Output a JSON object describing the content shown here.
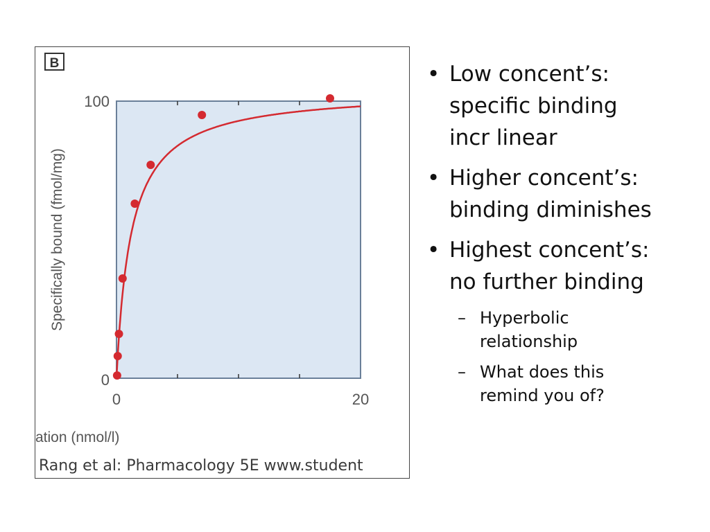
{
  "chart_data": {
    "type": "scatter",
    "panel_label": "B",
    "xlabel": "ation (nmol/l)",
    "ylabel": "Specifically bound (fmol/mg)",
    "xlim": [
      0,
      20
    ],
    "ylim": [
      0,
      100
    ],
    "x_ticks": [
      "0",
      "20"
    ],
    "y_ticks": [
      "0",
      "100"
    ],
    "series": [
      {
        "color": "#d42a30",
        "x": [
          0.05,
          0.1,
          0.2,
          0.5,
          1.5,
          2.8,
          7,
          17.5
        ],
        "y": [
          1,
          8,
          16,
          36,
          63,
          77,
          95,
          101
        ]
      }
    ],
    "curve": {
      "model": "hyperbolic",
      "bmax": 104,
      "kd": 1.2
    },
    "background": "#dce7f3",
    "caption": "Rang et al: Pharmacology 5E www.student"
  },
  "bullets": [
    {
      "lines": [
        "Low concent’s:",
        "specific binding",
        "incr linear"
      ]
    },
    {
      "lines": [
        "Higher concent’s:",
        "binding diminishes"
      ]
    },
    {
      "lines": [
        "Highest concent’s:",
        "no further binding"
      ],
      "sub": [
        {
          "lines": [
            "Hyperbolic",
            "relationship"
          ]
        },
        {
          "lines": [
            "What does this",
            "remind you of?"
          ]
        }
      ]
    }
  ],
  "bullet_glyph": "•",
  "dash_glyph": "–"
}
